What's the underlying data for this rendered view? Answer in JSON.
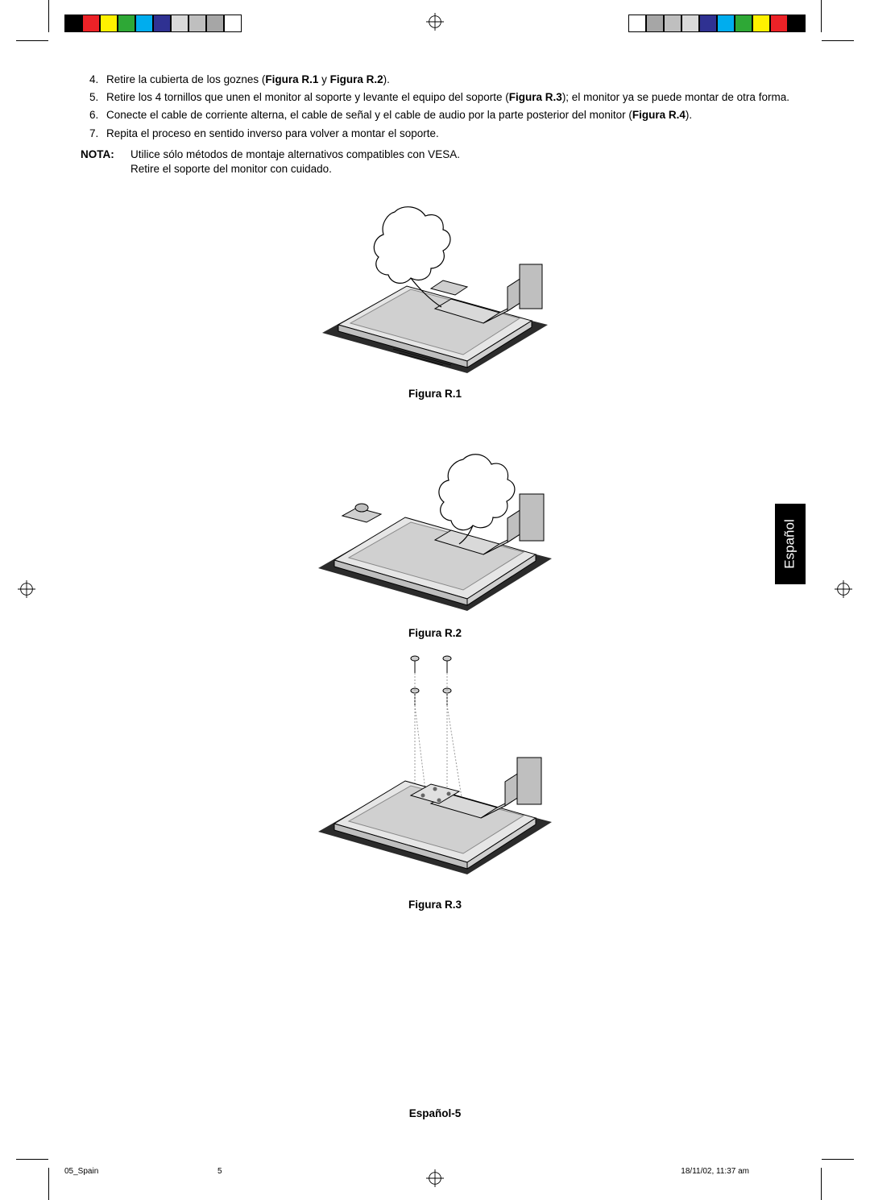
{
  "instructions": {
    "start": 4,
    "items": [
      {
        "pre": "Retire la cubierta de los goznes (",
        "b1": "Figura R.1",
        "mid": " y ",
        "b2": "Figura R.2",
        "post": ")."
      },
      {
        "pre": "Retire los 4 tornillos que unen el monitor al soporte y levante el equipo del soporte (",
        "b1": "Figura R.3",
        "mid": "",
        "b2": "",
        "post": "); el monitor ya se puede montar de otra forma."
      },
      {
        "pre": "Conecte el cable de corriente alterna, el cable de señal y el cable de audio por la parte posterior del monitor (",
        "b1": "Figura R.4",
        "mid": "",
        "b2": "",
        "post": ")."
      },
      {
        "pre": "Repita el proceso en sentido inverso para volver a montar el soporte.",
        "b1": "",
        "mid": "",
        "b2": "",
        "post": ""
      }
    ]
  },
  "note": {
    "label": "NOTA:",
    "line1": "Utilice sólo métodos de montaje alternativos compatibles con VESA.",
    "line2": "Retire el soporte del monitor con cuidado."
  },
  "figures": {
    "r1": "Figura R.1",
    "r2": "Figura R.2",
    "r3": "Figura R.3"
  },
  "langTab": "Español",
  "footer": "Español-5",
  "slug": {
    "file": "05_Spain",
    "page": "5",
    "timestamp": "18/11/02, 11:37 am"
  },
  "printMarks": {
    "colors": [
      "#000000",
      "#ec2227",
      "#fff100",
      "#2ea836",
      "#00adee",
      "#2f3192",
      "#d9d9d9",
      "#bfbfbf",
      "#a6a6a6",
      "#ffffff"
    ]
  }
}
